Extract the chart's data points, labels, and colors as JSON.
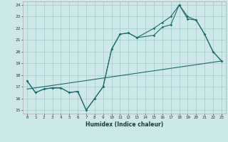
{
  "xlabel": "Humidex (Indice chaleur)",
  "bg_color": "#cce8e8",
  "grid_color": "#aacece",
  "line_color": "#1a6b6b",
  "xlim": [
    -0.5,
    23.5
  ],
  "ylim": [
    14.7,
    24.3
  ],
  "xticks": [
    0,
    1,
    2,
    3,
    4,
    5,
    6,
    7,
    8,
    9,
    10,
    11,
    12,
    13,
    14,
    15,
    16,
    17,
    18,
    19,
    20,
    21,
    22,
    23
  ],
  "yticks": [
    15,
    16,
    17,
    18,
    19,
    20,
    21,
    22,
    23,
    24
  ],
  "line1_x": [
    0,
    1,
    2,
    3,
    4,
    5,
    6,
    7,
    8,
    9,
    10,
    11,
    12,
    13,
    15,
    16,
    17,
    18,
    19,
    20,
    21,
    22,
    23
  ],
  "line1_y": [
    17.5,
    16.5,
    16.8,
    16.9,
    16.9,
    16.5,
    16.6,
    15.0,
    16.0,
    17.0,
    20.2,
    21.5,
    21.6,
    21.2,
    21.4,
    22.1,
    22.3,
    24.0,
    22.8,
    22.7,
    21.5,
    20.0,
    19.2
  ],
  "line2_x": [
    0,
    1,
    2,
    3,
    4,
    5,
    6,
    7,
    8,
    9,
    10,
    11,
    12,
    13,
    15,
    16,
    17,
    18,
    19,
    20,
    21,
    22,
    23
  ],
  "line2_y": [
    17.5,
    16.5,
    16.8,
    16.9,
    16.9,
    16.5,
    16.6,
    15.0,
    16.0,
    17.0,
    20.2,
    21.5,
    21.6,
    21.2,
    22.0,
    22.5,
    23.0,
    24.0,
    23.0,
    22.7,
    21.5,
    20.0,
    19.2
  ],
  "line3_x": [
    0,
    23
  ],
  "line3_y": [
    16.8,
    19.2
  ]
}
